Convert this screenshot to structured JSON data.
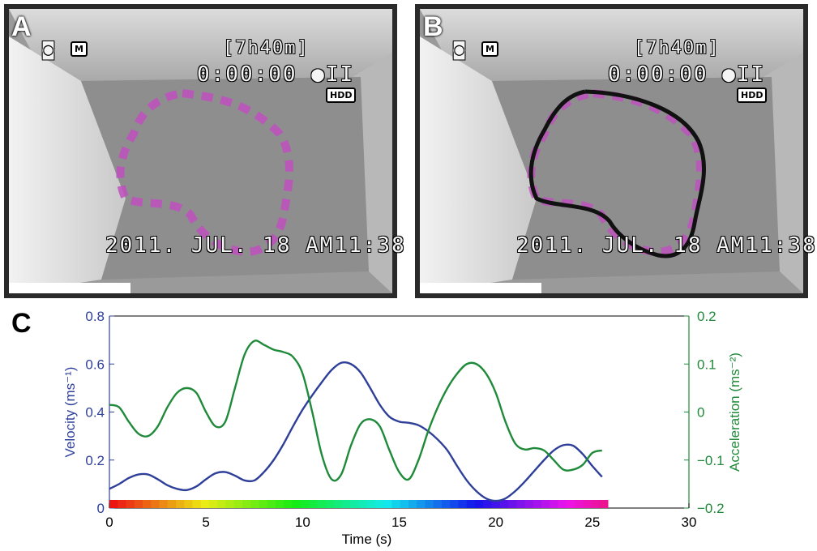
{
  "panels": {
    "a": {
      "letter": "A"
    },
    "b": {
      "letter": "B"
    },
    "c": {
      "letter": "C"
    }
  },
  "overlay": {
    "record_time": "[7h40m]",
    "timecode": "0:00:00 ●II",
    "hdd_badge": "HDD",
    "datetime": "2011. JUL. 18  AM11:38",
    "mode_icon_letter": "M",
    "camera_icon": "camcorder-icon",
    "media_icon": "memory-card-icon"
  },
  "colors": {
    "velocity": "#2e3f9a",
    "acceleration": "#1f8a3a",
    "track": "#111111"
  },
  "chart_data": {
    "type": "line",
    "xlabel": "Time (s)",
    "xlim": [
      0,
      30
    ],
    "xticks": [
      0,
      5,
      10,
      15,
      20,
      25,
      30
    ],
    "y_left": {
      "label": "Velocity (ms⁻¹)",
      "ylim": [
        0,
        0.8
      ],
      "ticks": [
        "0",
        "0.2",
        "0.4",
        "0.6",
        "0.8"
      ]
    },
    "y_right": {
      "label": "Acceleration (ms⁻²)",
      "ylim": [
        -0.2,
        0.2
      ],
      "ticks": [
        "−0.2",
        "−0.1",
        "0",
        "0.1",
        "0.2"
      ]
    },
    "colorbar": {
      "range": [
        0,
        25.8
      ],
      "description": "rainbow time bar"
    },
    "series": [
      {
        "name": "Velocity",
        "axis": "left",
        "x": [
          0,
          0.5,
          1,
          1.5,
          2,
          2.5,
          3,
          3.5,
          4,
          4.5,
          5,
          5.5,
          6,
          6.5,
          7,
          7.5,
          8,
          8.5,
          9,
          9.5,
          10,
          10.5,
          11,
          11.5,
          12,
          12.5,
          13,
          13.5,
          14,
          14.5,
          15,
          15.5,
          16,
          16.5,
          17,
          17.5,
          18,
          18.5,
          19,
          19.5,
          20,
          20.5,
          21,
          21.5,
          22,
          22.5,
          23,
          23.5,
          24,
          24.5,
          25,
          25.5
        ],
        "values": [
          0.08,
          0.1,
          0.125,
          0.14,
          0.14,
          0.12,
          0.095,
          0.08,
          0.075,
          0.09,
          0.12,
          0.145,
          0.15,
          0.135,
          0.115,
          0.115,
          0.15,
          0.2,
          0.265,
          0.34,
          0.41,
          0.47,
          0.525,
          0.575,
          0.605,
          0.6,
          0.565,
          0.5,
          0.43,
          0.38,
          0.36,
          0.355,
          0.345,
          0.32,
          0.285,
          0.24,
          0.175,
          0.115,
          0.07,
          0.04,
          0.03,
          0.04,
          0.07,
          0.11,
          0.155,
          0.2,
          0.24,
          0.262,
          0.26,
          0.225,
          0.175,
          0.13
        ]
      },
      {
        "name": "Acceleration",
        "axis": "right",
        "x": [
          0,
          0.5,
          1,
          1.5,
          2,
          2.5,
          3,
          3.5,
          4,
          4.5,
          5,
          5.5,
          6,
          6.5,
          7,
          7.5,
          8,
          8.5,
          9,
          9.5,
          10,
          10.5,
          11,
          11.5,
          12,
          12.5,
          13,
          13.5,
          14,
          14.5,
          15,
          15.5,
          16,
          16.5,
          17,
          17.5,
          18,
          18.5,
          19,
          19.5,
          20,
          20.5,
          21,
          21.5,
          22,
          22.5,
          23,
          23.5,
          24,
          24.5,
          25,
          25.5
        ],
        "values": [
          0.015,
          0.01,
          -0.02,
          -0.045,
          -0.05,
          -0.03,
          0.01,
          0.04,
          0.05,
          0.04,
          0.0,
          -0.03,
          -0.02,
          0.05,
          0.12,
          0.148,
          0.14,
          0.13,
          0.125,
          0.115,
          0.08,
          0.0,
          -0.09,
          -0.14,
          -0.13,
          -0.07,
          -0.025,
          -0.015,
          -0.03,
          -0.08,
          -0.125,
          -0.14,
          -0.1,
          -0.04,
          0.01,
          0.05,
          0.08,
          0.1,
          0.1,
          0.08,
          0.04,
          -0.02,
          -0.065,
          -0.078,
          -0.075,
          -0.08,
          -0.1,
          -0.12,
          -0.12,
          -0.11,
          -0.085,
          -0.08
        ]
      }
    ]
  }
}
